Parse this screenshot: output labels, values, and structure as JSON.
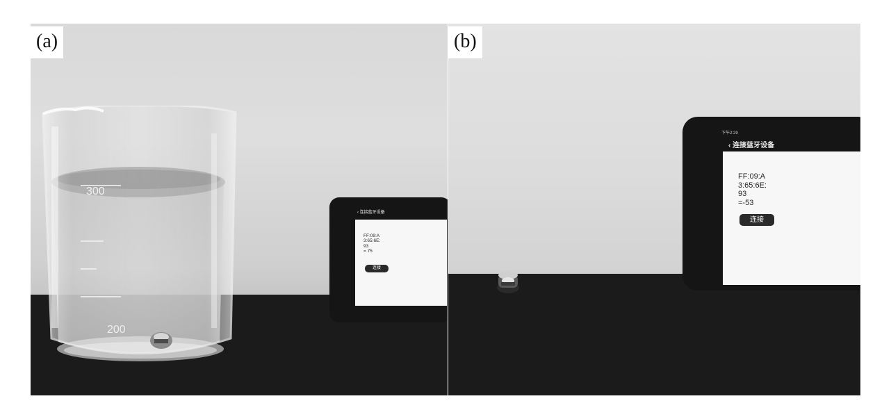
{
  "panels": [
    {
      "label": "(a)",
      "beaker_graduations": [
        "300",
        "200"
      ],
      "app": {
        "status_time": "",
        "header": "‹ 连接蓝牙设备",
        "device_lines": [
          "FF:09:A",
          "3:65:6E:",
          "93",
          "= 75"
        ],
        "connect_label": "连接"
      }
    },
    {
      "label": "(b)",
      "app": {
        "status_time": "下午2:29",
        "header": "‹ 连接蓝牙设备",
        "device_lines": [
          "FF:09:A",
          "3:65:6E:",
          "93",
          "=-53"
        ],
        "connect_label": "连接"
      }
    }
  ]
}
